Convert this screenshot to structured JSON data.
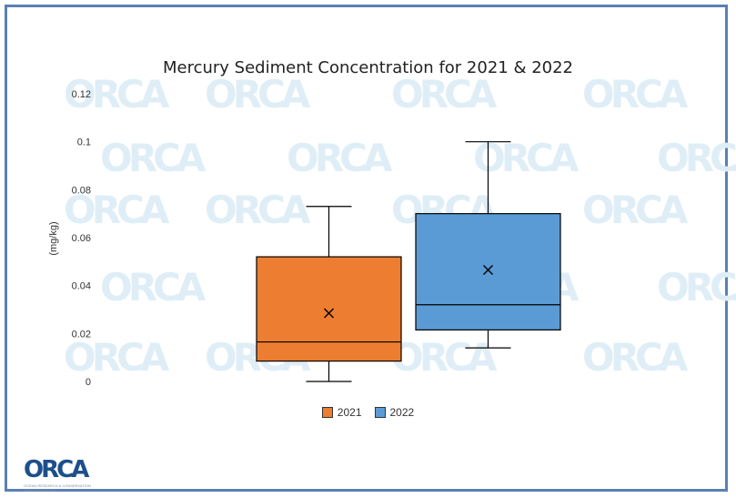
{
  "chart_data": {
    "type": "boxplot",
    "title": "Mercury Sediment Concentration for 2021 & 2022",
    "ylabel": "(mg/kg)",
    "xlabel": "",
    "ylim": [
      0,
      0.12
    ],
    "yticks": [
      "0",
      "0.02",
      "0.04",
      "0.06",
      "0.08",
      "0.1",
      "0.12"
    ],
    "yticks_values": [
      0,
      0.02,
      0.04,
      0.06,
      0.08,
      0.1,
      0.12
    ],
    "grid": false,
    "legend_position": "bottom",
    "series": [
      {
        "name": "2021",
        "color": "#ed7d31",
        "min": 0.0,
        "q1": 0.0085,
        "median": 0.0165,
        "q3": 0.052,
        "max": 0.073,
        "mean": 0.0285
      },
      {
        "name": "2022",
        "color": "#5b9bd5",
        "min": 0.014,
        "q1": 0.0215,
        "median": 0.032,
        "q3": 0.07,
        "max": 0.1,
        "mean": 0.0465
      }
    ]
  },
  "watermark": "ORCA",
  "logo": {
    "text": "ORCA",
    "tagline": "OCEAN RESEARCH & CONSERVATION ASSOCIATION, INC."
  }
}
